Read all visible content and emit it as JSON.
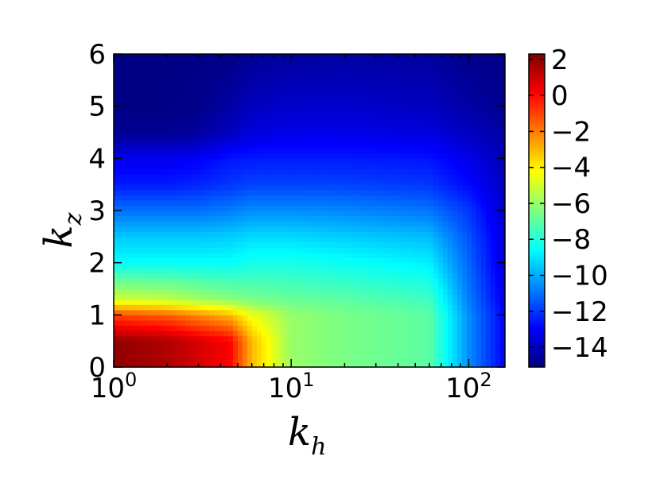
{
  "chart_data": {
    "type": "heatmap",
    "title": "",
    "xlabel": {
      "base": "k",
      "sub": "h"
    },
    "ylabel": {
      "base": "k",
      "sub": "z"
    },
    "xscale": "log",
    "xlim": [
      1,
      160
    ],
    "ylim": [
      0,
      6
    ],
    "colormap": "jet",
    "clim": [
      -15.1,
      2.3
    ],
    "x_ticks": [
      {
        "value": 1,
        "base": "10",
        "exp": "0"
      },
      {
        "value": 10,
        "base": "10",
        "exp": "1"
      },
      {
        "value": 100,
        "base": "10",
        "exp": "2"
      }
    ],
    "y_ticks": [
      {
        "value": 0,
        "label": "0"
      },
      {
        "value": 1,
        "label": "1"
      },
      {
        "value": 2,
        "label": "2"
      },
      {
        "value": 3,
        "label": "3"
      },
      {
        "value": 4,
        "label": "4"
      },
      {
        "value": 5,
        "label": "5"
      },
      {
        "value": 6,
        "label": "6"
      }
    ],
    "colorbar_ticks": [
      {
        "value": 2,
        "label": "2"
      },
      {
        "value": 0,
        "label": "0"
      },
      {
        "value": -2,
        "label": "−2"
      },
      {
        "value": -4,
        "label": "−4"
      },
      {
        "value": -6,
        "label": "−6"
      },
      {
        "value": -8,
        "label": "−8"
      },
      {
        "value": -10,
        "label": "−10"
      },
      {
        "value": -12,
        "label": "−12"
      },
      {
        "value": -14,
        "label": "−14"
      }
    ],
    "kh_samples": [
      1,
      2,
      3,
      4.5,
      6,
      10,
      20,
      60,
      100,
      160
    ],
    "kz_samples": [
      0,
      0.5,
      1.0,
      1.3,
      2.0,
      2.5,
      3.0,
      3.5,
      4.0,
      4.5,
      5.0,
      6.0
    ],
    "z": [
      [
        2.0,
        1.5,
        0.8,
        0.2,
        -3.0,
        -6.0,
        -6.5,
        -7.0,
        -10.5,
        -13.0
      ],
      [
        2.0,
        1.5,
        0.8,
        0.2,
        -3.0,
        -6.0,
        -6.5,
        -7.0,
        -10.5,
        -13.0
      ],
      [
        -1.0,
        -1.5,
        -2.2,
        -3.0,
        -4.5,
        -6.0,
        -6.5,
        -7.0,
        -10.5,
        -13.0
      ],
      [
        -5.0,
        -5.3,
        -5.8,
        -6.2,
        -6.5,
        -6.8,
        -7.0,
        -7.5,
        -10.8,
        -13.2
      ],
      [
        -8.5,
        -8.5,
        -8.5,
        -8.5,
        -8.2,
        -8.2,
        -8.4,
        -8.8,
        -11.2,
        -13.5
      ],
      [
        -9.5,
        -9.5,
        -9.5,
        -9.4,
        -9.2,
        -9.2,
        -9.4,
        -9.7,
        -11.5,
        -13.6
      ],
      [
        -11.0,
        -11.0,
        -11.0,
        -10.8,
        -10.5,
        -10.5,
        -10.6,
        -10.9,
        -12.0,
        -13.8
      ],
      [
        -12.5,
        -12.5,
        -12.3,
        -12.0,
        -11.8,
        -11.8,
        -11.8,
        -12.0,
        -12.8,
        -14.0
      ],
      [
        -13.2,
        -13.2,
        -13.0,
        -12.6,
        -12.5,
        -12.5,
        -12.5,
        -12.6,
        -13.3,
        -14.2
      ],
      [
        -14.8,
        -14.8,
        -14.6,
        -14.0,
        -13.5,
        -13.3,
        -13.3,
        -13.5,
        -14.0,
        -14.5
      ],
      [
        -15.0,
        -15.0,
        -14.9,
        -14.5,
        -14.0,
        -13.8,
        -13.8,
        -14.0,
        -14.5,
        -14.8
      ],
      [
        -15.0,
        -15.0,
        -15.0,
        -15.0,
        -14.8,
        -14.6,
        -14.5,
        -14.6,
        -14.9,
        -15.0
      ]
    ]
  }
}
